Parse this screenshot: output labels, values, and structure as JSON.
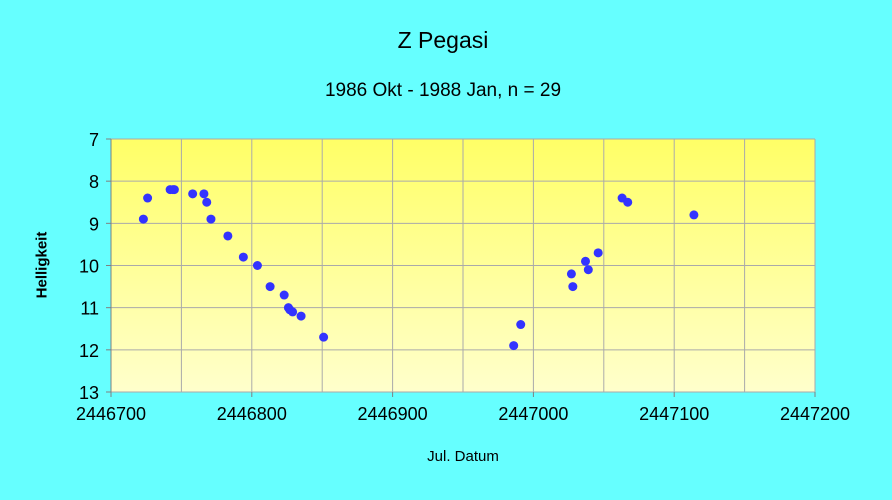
{
  "chart_data": {
    "type": "scatter",
    "title": "Z Pegasi",
    "subtitle": "1986 Okt - 1988 Jan, n = 29",
    "xlabel": "Jul. Datum",
    "ylabel": "Helligkeit",
    "xlim": [
      2446700,
      2447200
    ],
    "ylim": [
      7,
      13
    ],
    "y_inverted": true,
    "grid": true,
    "x_ticks": [
      2446700,
      2446800,
      2446900,
      2447000,
      2447100,
      2447200
    ],
    "x_tick_labels": [
      "2446700",
      "2446800",
      "2446900",
      "2447000",
      "2447100",
      "2447200"
    ],
    "y_ticks": [
      7,
      8,
      9,
      10,
      11,
      12,
      13
    ],
    "y_tick_labels": [
      "7",
      "8",
      "9",
      "10",
      "11",
      "12",
      "13"
    ],
    "colors": {
      "background": "#66ffff",
      "plot_top": "#ffff66",
      "plot_bottom": "#ffffcc",
      "grid": "#aaaaaa",
      "marker": "#3333ff"
    },
    "points": [
      {
        "x": 2446723,
        "y": 8.9
      },
      {
        "x": 2446726,
        "y": 8.4
      },
      {
        "x": 2446742,
        "y": 8.2
      },
      {
        "x": 2446744,
        "y": 8.2
      },
      {
        "x": 2446745,
        "y": 8.2
      },
      {
        "x": 2446758,
        "y": 8.3
      },
      {
        "x": 2446766,
        "y": 8.3
      },
      {
        "x": 2446768,
        "y": 8.5
      },
      {
        "x": 2446771,
        "y": 8.9
      },
      {
        "x": 2446783,
        "y": 9.3
      },
      {
        "x": 2446794,
        "y": 9.8
      },
      {
        "x": 2446804,
        "y": 10.0
      },
      {
        "x": 2446813,
        "y": 10.5
      },
      {
        "x": 2446823,
        "y": 10.7
      },
      {
        "x": 2446826,
        "y": 11.0
      },
      {
        "x": 2446827,
        "y": 11.05
      },
      {
        "x": 2446829,
        "y": 11.1
      },
      {
        "x": 2446835,
        "y": 11.2
      },
      {
        "x": 2446851,
        "y": 11.7
      },
      {
        "x": 2446986,
        "y": 11.9
      },
      {
        "x": 2446991,
        "y": 11.4
      },
      {
        "x": 2447027,
        "y": 10.2
      },
      {
        "x": 2447028,
        "y": 10.5
      },
      {
        "x": 2447037,
        "y": 9.9
      },
      {
        "x": 2447039,
        "y": 10.1
      },
      {
        "x": 2447046,
        "y": 9.7
      },
      {
        "x": 2447063,
        "y": 8.4
      },
      {
        "x": 2447067,
        "y": 8.5
      },
      {
        "x": 2447114,
        "y": 8.8
      }
    ]
  }
}
